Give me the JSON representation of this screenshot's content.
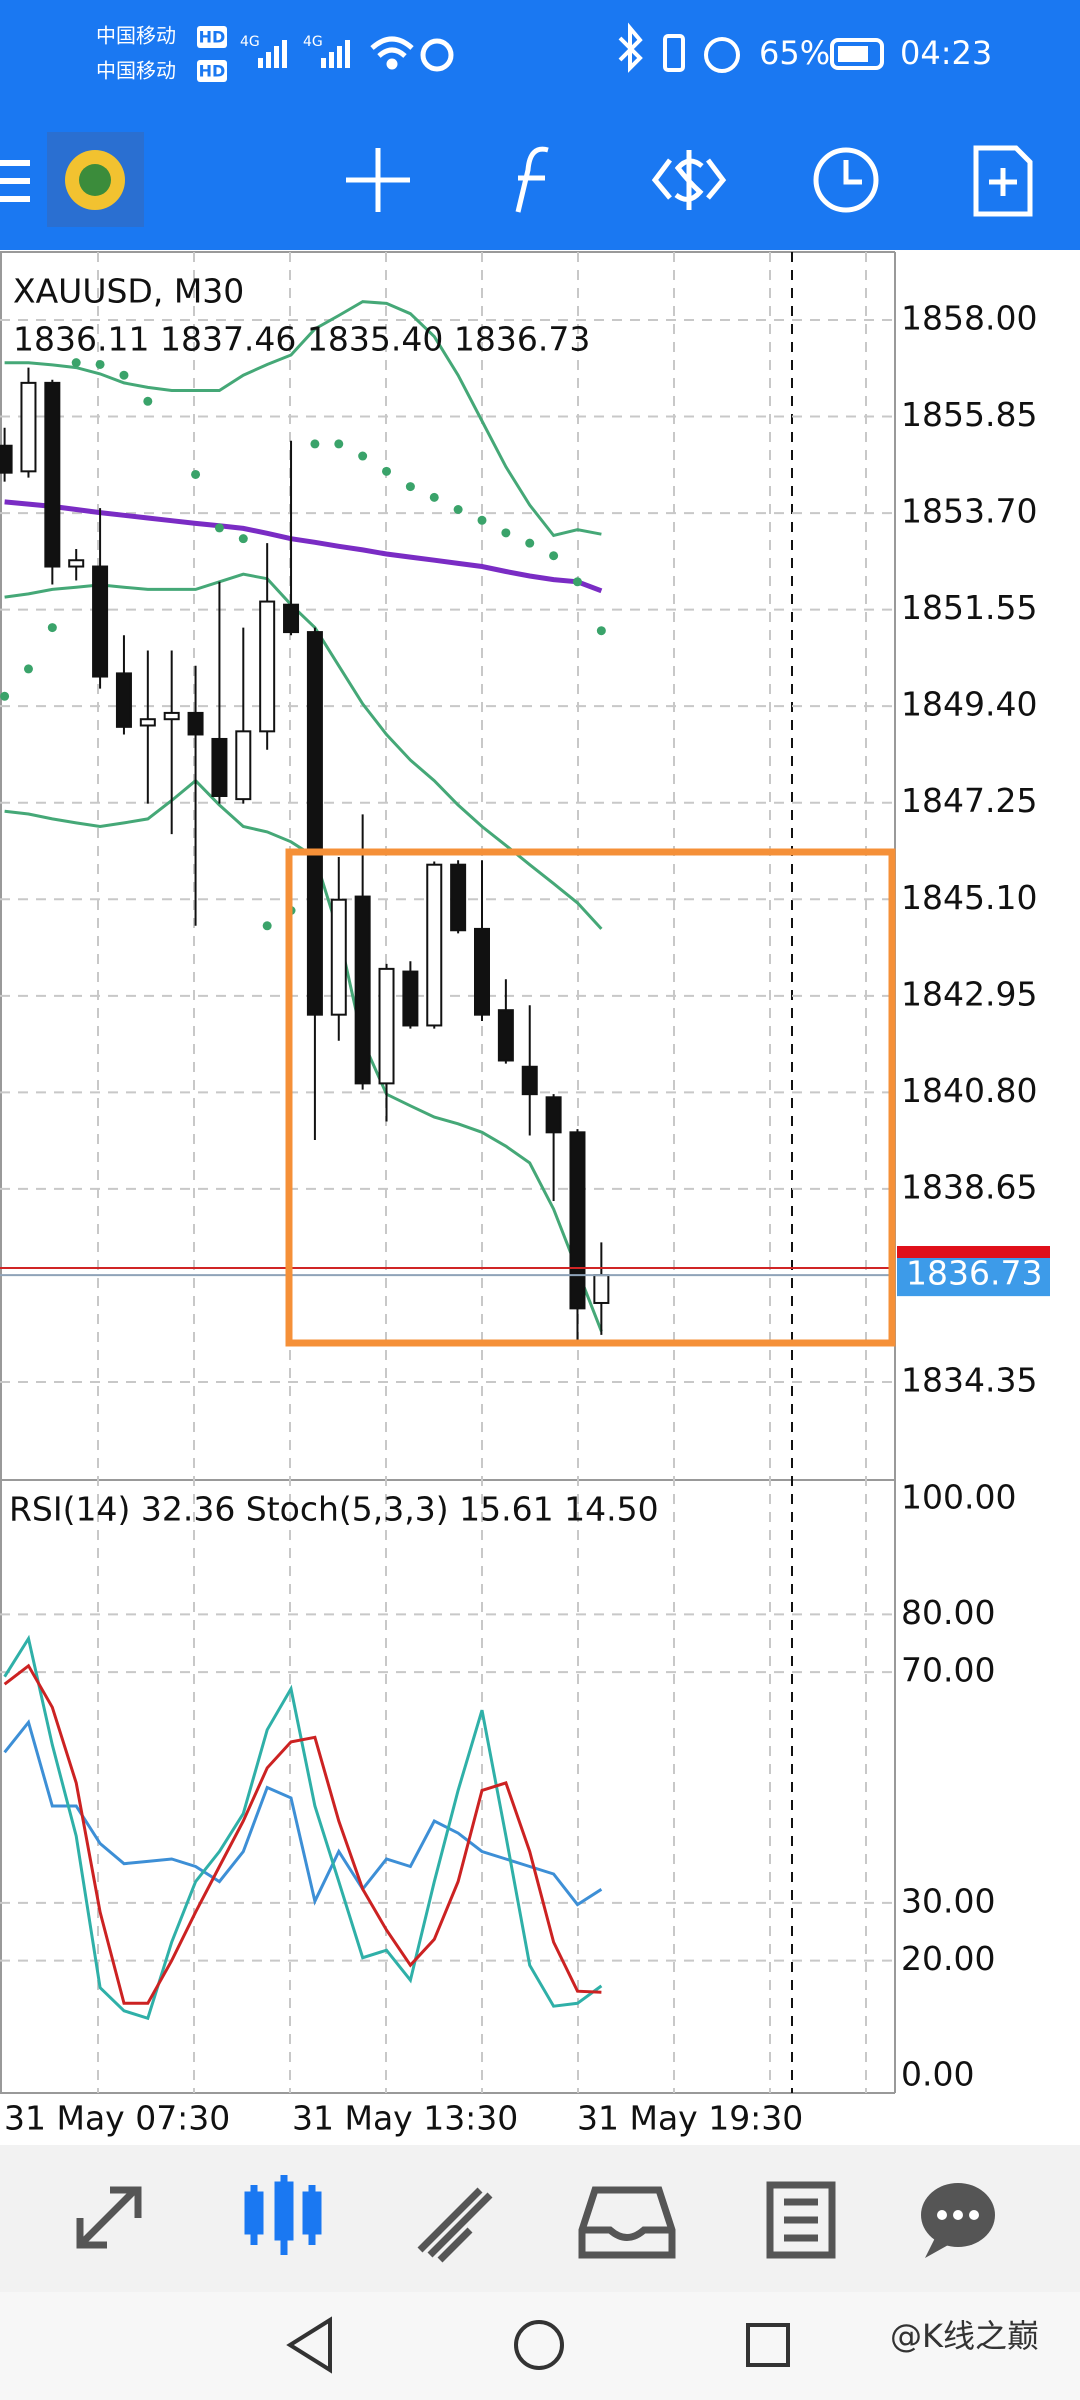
{
  "status_bar": {
    "carrier_1": "中国移动",
    "carrier_2": "中国移动",
    "hd": "HD",
    "network": "4G",
    "battery": "65%",
    "time": "04:23"
  },
  "chart": {
    "symbol": "XAUUSD, M30",
    "ohlc": "1836.11 1837.46 1835.40 1836.73",
    "price_ticks": [
      {
        "value": 1858,
        "label": "1858.00"
      },
      1855.85,
      {
        "value": 1853.7,
        "label": "1853.70"
      },
      1851.55,
      {
        "value": 1849.4,
        "label": "1849.40"
      },
      1847.25,
      {
        "value": 1845.1,
        "label": "1845.10"
      },
      1842.95,
      {
        "value": 1840.8,
        "label": "1840.80"
      },
      1838.65,
      1834.35
    ],
    "current_price": 1836.73,
    "candles": [
      {
        "open": 1855.2,
        "high": 1855.6,
        "low": 1854.4,
        "close": 1854.6
      },
      {
        "open": 1854.63,
        "high": 1856.94,
        "low": 1854.49,
        "close": 1856.6
      },
      {
        "open": 1856.6,
        "high": 1856.67,
        "low": 1852.11,
        "close": 1852.51
      },
      {
        "open": 1852.51,
        "high": 1852.9,
        "low": 1852.2,
        "close": 1852.65
      },
      {
        "open": 1852.51,
        "high": 1853.81,
        "low": 1849.79,
        "close": 1850.06
      },
      {
        "open": 1850.13,
        "high": 1850.98,
        "low": 1848.77,
        "close": 1848.94
      },
      {
        "open": 1848.97,
        "high": 1850.64,
        "low": 1847.23,
        "close": 1849.11
      },
      {
        "open": 1849.11,
        "high": 1850.64,
        "low": 1846.55,
        "close": 1849.25
      },
      {
        "open": 1849.25,
        "high": 1850.3,
        "low": 1844.51,
        "close": 1848.77
      },
      {
        "open": 1848.67,
        "high": 1852.17,
        "low": 1847.23,
        "close": 1847.4
      },
      {
        "open": 1847.33,
        "high": 1851.15,
        "low": 1847.23,
        "close": 1848.84
      },
      {
        "open": 1848.84,
        "high": 1853.03,
        "low": 1848.43,
        "close": 1851.73
      },
      {
        "open": 1851.66,
        "high": 1855.31,
        "low": 1850.98,
        "close": 1851.05
      },
      {
        "open": 1851.05,
        "high": 1851.15,
        "low": 1839.74,
        "close": 1842.53
      },
      {
        "open": 1842.53,
        "high": 1846.04,
        "low": 1841.95,
        "close": 1845.09
      },
      {
        "open": 1845.16,
        "high": 1846.99,
        "low": 1840.86,
        "close": 1841.0
      },
      {
        "open": 1841.0,
        "high": 1843.66,
        "low": 1840.15,
        "close": 1843.55
      },
      {
        "open": 1843.49,
        "high": 1843.72,
        "low": 1842.22,
        "close": 1842.29
      },
      {
        "open": 1842.29,
        "high": 1845.94,
        "low": 1842.22,
        "close": 1845.87
      },
      {
        "open": 1845.87,
        "high": 1845.97,
        "low": 1844.34,
        "close": 1844.41
      },
      {
        "open": 1844.44,
        "high": 1845.97,
        "low": 1842.39,
        "close": 1842.53
      },
      {
        "open": 1842.63,
        "high": 1843.32,
        "low": 1841.44,
        "close": 1841.51
      },
      {
        "open": 1841.37,
        "high": 1842.74,
        "low": 1839.84,
        "close": 1840.76
      },
      {
        "open": 1840.69,
        "high": 1840.76,
        "low": 1838.38,
        "close": 1839.91
      },
      {
        "open": 1839.91,
        "high": 1839.98,
        "low": 1835.21,
        "close": 1835.99
      },
      {
        "open": 1836.11,
        "high": 1837.46,
        "low": 1835.4,
        "close": 1836.73
      }
    ],
    "band_upper": [
      1857.05,
      1857.05,
      1857.0,
      1856.94,
      1856.8,
      1856.6,
      1856.5,
      1856.43,
      1856.43,
      1856.43,
      1856.77,
      1857.01,
      1857.22,
      1857.8,
      1858.1,
      1858.41,
      1858.37,
      1858.14,
      1857.63,
      1856.77,
      1855.75,
      1854.73,
      1853.88,
      1853.2,
      1853.33,
      1853.23
    ],
    "band_middle": [
      1851.83,
      1851.9,
      1852.0,
      1852.05,
      1852.1,
      1852.05,
      1852.0,
      1852.0,
      1852.0,
      1852.17,
      1852.34,
      1852.24,
      1851.66,
      1851.15,
      1850.3,
      1849.45,
      1848.77,
      1848.2,
      1847.74,
      1847.2,
      1846.72,
      1846.3,
      1845.87,
      1845.45,
      1845.02,
      1844.44
    ],
    "band_lower": [
      1847.06,
      1847.0,
      1846.89,
      1846.8,
      1846.72,
      1846.8,
      1846.89,
      1847.3,
      1847.74,
      1847.2,
      1846.72,
      1846.6,
      1846.38,
      1846.04,
      1844.34,
      1841.95,
      1840.76,
      1840.5,
      1840.25,
      1840.1,
      1839.91,
      1839.6,
      1839.23,
      1838.2,
      1836.84,
      1835.48
    ],
    "moving_average": [
      1853.95,
      1853.9,
      1853.85,
      1853.78,
      1853.71,
      1853.65,
      1853.59,
      1853.53,
      1853.47,
      1853.42,
      1853.36,
      1853.25,
      1853.13,
      1853.05,
      1852.96,
      1852.88,
      1852.79,
      1852.72,
      1852.65,
      1852.58,
      1852.51,
      1852.4,
      1852.3,
      1852.22,
      1852.17,
      1851.97
    ],
    "sar": [
      1849.62,
      1850.23,
      1851.15,
      1857.05,
      1857.01,
      1856.77,
      1856.19,
      null,
      1854.56,
      1853.37,
      1853.13,
      1844.51,
      1844.85,
      1855.24,
      1855.24,
      1854.97,
      1854.63,
      1854.29,
      1854.05,
      1853.78,
      1853.54,
      1853.26,
      1853.03,
      1852.75,
      1852.17,
      1851.08
    ],
    "oscillator_label": "RSI(14) 32.36 Stoch(5,3,3) 15.61 14.50",
    "oscillator_ticks": [
      {
        "value": 100,
        "label": "100.00"
      },
      {
        "value": 80,
        "label": "80.00"
      },
      {
        "value": 70,
        "label": "70.00"
      },
      {
        "value": 30,
        "label": "30.00"
      },
      {
        "value": 20,
        "label": "20.00"
      },
      {
        "value": 0,
        "label": "0.00"
      }
    ],
    "rsi": [
      56.1,
      61.3,
      46.8,
      46.8,
      40.3,
      36.8,
      37.2,
      37.6,
      36.3,
      33.7,
      38.9,
      50,
      48.2,
      30.3,
      38.9,
      32.4,
      37.6,
      36.3,
      44.2,
      42.1,
      38.9,
      37.6,
      36.3,
      35,
      29.7,
      32.36
    ],
    "stoch_main": [
      69.2,
      75.8,
      57.4,
      41.6,
      15.3,
      11.3,
      10,
      23.2,
      33.7,
      38.9,
      45.5,
      60,
      67.1,
      46.8,
      33.7,
      20.5,
      21.8,
      16.6,
      33.7,
      49.5,
      63.4,
      41.6,
      19.2,
      12.1,
      12.6,
      15.61
    ],
    "stoch_signal": [
      67.9,
      71.1,
      63.9,
      50.8,
      28.4,
      12.6,
      12.6,
      20,
      28.4,
      36.3,
      44.2,
      53.4,
      57.9,
      58.7,
      44.2,
      32.4,
      25.3,
      19.2,
      23.7,
      33.7,
      49.5,
      50.8,
      38.9,
      23.2,
      14.7,
      14.5
    ],
    "time_labels": [
      "31 May 07:30",
      "31 May 13:30",
      "31 May 19:30"
    ]
  },
  "watermark": "@K线之巅"
}
